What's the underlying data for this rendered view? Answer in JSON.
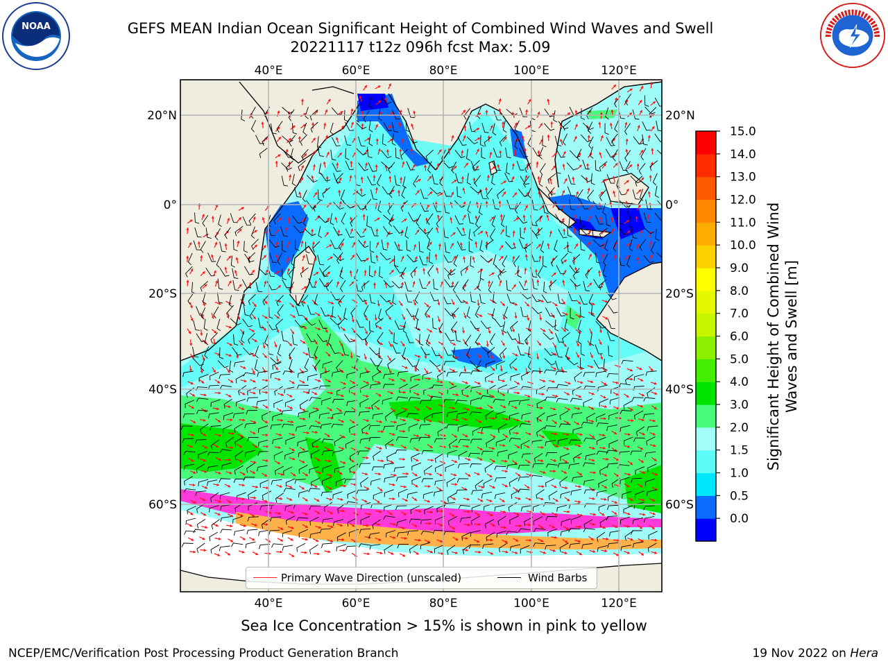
{
  "title": {
    "line1": "GEFS MEAN Indian Ocean Significant Height of Combined Wind Waves and Swell",
    "line2": "20221117 t12z 096h fcst   Max: 5.09"
  },
  "logos": {
    "left": {
      "name": "noaa-logo",
      "text": "NOAA",
      "ring_text": "NATIONAL OCEANIC AND ATMOSPHERIC ADMINISTRATION · U.S. DEPARTMENT OF COMMERCE"
    },
    "right": {
      "name": "nws-logo",
      "ring_text": "NATIONAL WEATHER SERVICE"
    }
  },
  "map": {
    "lon_ticks": [
      "40°E",
      "60°E",
      "80°E",
      "100°E",
      "120°E"
    ],
    "lat_ticks_left": [
      "20°N",
      "0°",
      "20°S",
      "40°S",
      "60°S"
    ],
    "lat_ticks_right": [
      "20°N",
      "0°",
      "20°S",
      "40°S",
      "60°S"
    ],
    "colors": {
      "land": "#efeddf",
      "ocean_base": "#9ffcf9",
      "ice_pink": "#ff3ad8",
      "ice_orange": "#ffb24a",
      "arrow": "#ff1010",
      "barb": "#000000"
    }
  },
  "legend": {
    "primary_wave": "Primary Wave Direction (unscaled)",
    "wind_barbs": "Wind Barbs",
    "primary_color": "#ff2020",
    "barb_color": "#000000"
  },
  "colorbar": {
    "label": "Significant Height of Combined Wind Waves and Swell [m]",
    "ticks": [
      "15.0",
      "14.0",
      "13.0",
      "12.0",
      "11.0",
      "10.0",
      "9.0",
      "8.0",
      "7.0",
      "6.0",
      "5.0",
      "4.0",
      "3.0",
      "2.0",
      "1.5",
      "1.0",
      "0.5",
      "0.0"
    ],
    "colors_bottom_to_top": [
      "#0000ff",
      "#0a6cff",
      "#00e6ff",
      "#5cfcf6",
      "#a2fcf8",
      "#48f97c",
      "#00e500",
      "#44ee00",
      "#8cf000",
      "#c8f500",
      "#e4f800",
      "#ffff00",
      "#ffd000",
      "#ffac00",
      "#ff8800",
      "#ff5a00",
      "#ff2c00",
      "#ff0000"
    ]
  },
  "footer": {
    "note": "Sea Ice Concentration > 15% is shown in pink to yellow",
    "credit": "NCEP/EMC/Verification Post Processing Product Generation Branch",
    "date": "19 Nov 2022 on",
    "host": "Hera"
  }
}
